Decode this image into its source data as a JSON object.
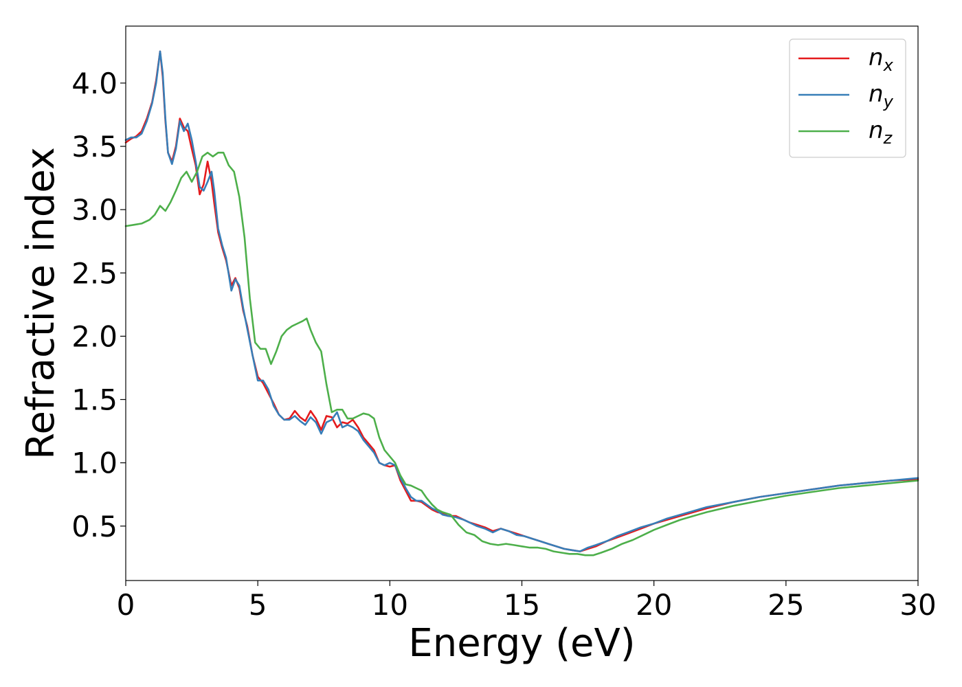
{
  "chart_data": {
    "type": "line",
    "title": "",
    "xlabel": "Energy (eV)",
    "ylabel": "Refractive index",
    "xlim": [
      0,
      30
    ],
    "ylim": [
      0.07,
      4.45
    ],
    "xticks": [
      0,
      5,
      10,
      15,
      20,
      25,
      30
    ],
    "yticks": [
      0.5,
      1.0,
      1.5,
      2.0,
      2.5,
      3.0,
      3.5,
      4.0
    ],
    "xtick_labels": [
      "0",
      "5",
      "10",
      "15",
      "20",
      "25",
      "30"
    ],
    "ytick_labels": [
      "0.5",
      "1.0",
      "1.5",
      "2.0",
      "2.5",
      "3.0",
      "3.5",
      "4.0"
    ],
    "grid": false,
    "legend_position": "top-right",
    "series": [
      {
        "name": "n_x",
        "legend_base": "n",
        "legend_sub": "x",
        "color": "#e41a1c",
        "x": [
          0,
          0.2,
          0.4,
          0.6,
          0.8,
          1.0,
          1.15,
          1.3,
          1.4,
          1.5,
          1.6,
          1.75,
          1.9,
          2.05,
          2.2,
          2.35,
          2.5,
          2.65,
          2.8,
          2.95,
          3.1,
          3.25,
          3.35,
          3.5,
          3.65,
          3.8,
          4.0,
          4.15,
          4.3,
          4.45,
          4.6,
          4.8,
          5.0,
          5.2,
          5.4,
          5.6,
          5.8,
          6.0,
          6.2,
          6.4,
          6.6,
          6.8,
          7.0,
          7.2,
          7.4,
          7.6,
          7.8,
          8.0,
          8.2,
          8.4,
          8.6,
          8.8,
          9.0,
          9.2,
          9.4,
          9.6,
          9.8,
          10.0,
          10.2,
          10.4,
          10.6,
          10.8,
          11.0,
          11.2,
          11.4,
          11.6,
          11.8,
          12.0,
          12.2,
          12.5,
          12.8,
          13.0,
          13.3,
          13.6,
          13.9,
          14.2,
          14.5,
          14.8,
          15.1,
          15.4,
          15.7,
          16.0,
          16.3,
          16.6,
          16.9,
          17.2,
          17.5,
          17.8,
          18.2,
          18.6,
          19.0,
          19.5,
          20.0,
          20.5,
          21.0,
          21.5,
          22.0,
          23.0,
          24.0,
          25.0,
          26.0,
          27.0,
          28.0,
          29.0,
          30.0
        ],
        "values": [
          3.53,
          3.56,
          3.58,
          3.62,
          3.72,
          3.85,
          4.02,
          4.25,
          4.05,
          3.7,
          3.45,
          3.38,
          3.5,
          3.72,
          3.65,
          3.62,
          3.48,
          3.35,
          3.12,
          3.2,
          3.38,
          3.22,
          3.05,
          2.82,
          2.7,
          2.6,
          2.4,
          2.46,
          2.38,
          2.2,
          2.08,
          1.85,
          1.68,
          1.63,
          1.55,
          1.47,
          1.38,
          1.34,
          1.35,
          1.41,
          1.36,
          1.33,
          1.41,
          1.35,
          1.26,
          1.37,
          1.36,
          1.28,
          1.32,
          1.31,
          1.34,
          1.28,
          1.2,
          1.15,
          1.1,
          1.0,
          0.98,
          0.97,
          0.98,
          0.86,
          0.78,
          0.7,
          0.7,
          0.69,
          0.66,
          0.63,
          0.61,
          0.6,
          0.58,
          0.58,
          0.55,
          0.53,
          0.51,
          0.49,
          0.46,
          0.48,
          0.46,
          0.44,
          0.42,
          0.4,
          0.38,
          0.36,
          0.34,
          0.32,
          0.31,
          0.3,
          0.32,
          0.34,
          0.38,
          0.41,
          0.44,
          0.48,
          0.52,
          0.55,
          0.58,
          0.61,
          0.64,
          0.69,
          0.73,
          0.76,
          0.79,
          0.82,
          0.84,
          0.86,
          0.87
        ]
      },
      {
        "name": "n_y",
        "legend_base": "n",
        "legend_sub": "y",
        "color": "#377eb8",
        "x": [
          0,
          0.2,
          0.4,
          0.6,
          0.8,
          1.0,
          1.15,
          1.3,
          1.4,
          1.5,
          1.6,
          1.75,
          1.9,
          2.05,
          2.2,
          2.35,
          2.5,
          2.65,
          2.8,
          2.95,
          3.1,
          3.25,
          3.35,
          3.5,
          3.65,
          3.8,
          4.0,
          4.15,
          4.3,
          4.45,
          4.6,
          4.8,
          5.0,
          5.2,
          5.4,
          5.6,
          5.8,
          6.0,
          6.2,
          6.4,
          6.6,
          6.8,
          7.0,
          7.2,
          7.4,
          7.6,
          7.8,
          8.0,
          8.2,
          8.4,
          8.6,
          8.8,
          9.0,
          9.2,
          9.4,
          9.6,
          9.8,
          10.0,
          10.2,
          10.4,
          10.6,
          10.8,
          11.0,
          11.2,
          11.4,
          11.6,
          11.8,
          12.0,
          12.2,
          12.5,
          12.8,
          13.0,
          13.3,
          13.6,
          13.9,
          14.2,
          14.5,
          14.8,
          15.1,
          15.4,
          15.7,
          16.0,
          16.3,
          16.6,
          16.9,
          17.2,
          17.5,
          17.8,
          18.2,
          18.6,
          19.0,
          19.5,
          20.0,
          20.5,
          21.0,
          21.5,
          22.0,
          23.0,
          24.0,
          25.0,
          26.0,
          27.0,
          28.0,
          29.0,
          30.0
        ],
        "values": [
          3.55,
          3.57,
          3.57,
          3.6,
          3.7,
          3.84,
          4.0,
          4.25,
          4.08,
          3.72,
          3.45,
          3.36,
          3.48,
          3.7,
          3.62,
          3.68,
          3.55,
          3.38,
          3.18,
          3.15,
          3.22,
          3.3,
          3.15,
          2.85,
          2.72,
          2.62,
          2.36,
          2.45,
          2.4,
          2.22,
          2.06,
          1.85,
          1.65,
          1.65,
          1.58,
          1.45,
          1.38,
          1.34,
          1.34,
          1.37,
          1.33,
          1.3,
          1.36,
          1.32,
          1.23,
          1.32,
          1.34,
          1.4,
          1.28,
          1.3,
          1.28,
          1.25,
          1.18,
          1.13,
          1.08,
          1.0,
          0.98,
          1.0,
          0.98,
          0.88,
          0.8,
          0.73,
          0.7,
          0.7,
          0.67,
          0.64,
          0.62,
          0.59,
          0.58,
          0.57,
          0.55,
          0.53,
          0.5,
          0.48,
          0.45,
          0.48,
          0.46,
          0.43,
          0.42,
          0.4,
          0.38,
          0.36,
          0.34,
          0.32,
          0.31,
          0.3,
          0.33,
          0.35,
          0.38,
          0.42,
          0.45,
          0.49,
          0.52,
          0.56,
          0.59,
          0.62,
          0.65,
          0.69,
          0.73,
          0.76,
          0.79,
          0.82,
          0.84,
          0.86,
          0.88
        ]
      },
      {
        "name": "n_z",
        "legend_base": "n",
        "legend_sub": "z",
        "color": "#4daf4a",
        "x": [
          0,
          0.3,
          0.6,
          0.9,
          1.1,
          1.3,
          1.5,
          1.7,
          1.9,
          2.1,
          2.3,
          2.5,
          2.7,
          2.9,
          3.1,
          3.3,
          3.5,
          3.7,
          3.9,
          4.1,
          4.3,
          4.5,
          4.7,
          4.9,
          5.1,
          5.3,
          5.5,
          5.7,
          5.9,
          6.1,
          6.3,
          6.5,
          6.7,
          6.85,
          7.0,
          7.2,
          7.4,
          7.6,
          7.8,
          8.0,
          8.2,
          8.4,
          8.6,
          8.8,
          9.0,
          9.2,
          9.4,
          9.6,
          9.8,
          10.0,
          10.2,
          10.4,
          10.6,
          10.8,
          11.0,
          11.2,
          11.4,
          11.6,
          11.8,
          12.0,
          12.3,
          12.6,
          12.9,
          13.2,
          13.5,
          13.8,
          14.1,
          14.4,
          14.7,
          15.0,
          15.3,
          15.6,
          15.9,
          16.2,
          16.5,
          16.8,
          17.1,
          17.4,
          17.7,
          18.0,
          18.4,
          18.8,
          19.2,
          19.6,
          20.0,
          20.5,
          21.0,
          21.5,
          22.0,
          23.0,
          24.0,
          25.0,
          26.0,
          27.0,
          28.0,
          29.0,
          30.0
        ],
        "values": [
          2.87,
          2.88,
          2.89,
          2.92,
          2.96,
          3.03,
          2.99,
          3.06,
          3.15,
          3.25,
          3.3,
          3.22,
          3.3,
          3.42,
          3.45,
          3.42,
          3.45,
          3.45,
          3.35,
          3.3,
          3.1,
          2.78,
          2.3,
          1.95,
          1.9,
          1.9,
          1.78,
          1.88,
          2.0,
          2.05,
          2.08,
          2.1,
          2.12,
          2.14,
          2.05,
          1.95,
          1.88,
          1.62,
          1.4,
          1.42,
          1.42,
          1.35,
          1.35,
          1.37,
          1.39,
          1.38,
          1.35,
          1.2,
          1.1,
          1.05,
          1.0,
          0.9,
          0.83,
          0.82,
          0.8,
          0.78,
          0.72,
          0.67,
          0.63,
          0.61,
          0.59,
          0.51,
          0.45,
          0.43,
          0.38,
          0.36,
          0.35,
          0.36,
          0.35,
          0.34,
          0.33,
          0.33,
          0.32,
          0.3,
          0.29,
          0.28,
          0.28,
          0.27,
          0.27,
          0.29,
          0.32,
          0.36,
          0.39,
          0.43,
          0.47,
          0.51,
          0.55,
          0.58,
          0.61,
          0.66,
          0.7,
          0.74,
          0.77,
          0.8,
          0.82,
          0.84,
          0.86
        ]
      }
    ]
  }
}
